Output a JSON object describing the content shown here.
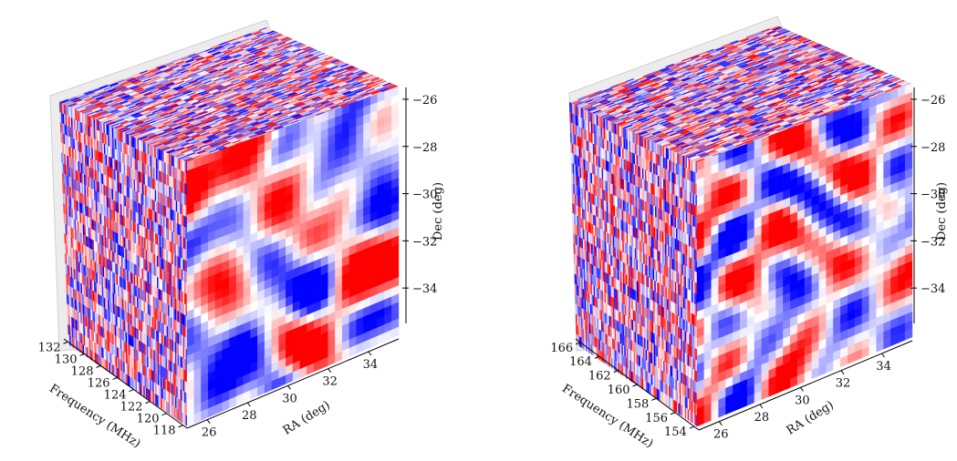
{
  "chart_data": [
    {
      "type": "heatmap",
      "title": "",
      "xlabel": "RA (deg)",
      "ylabel": "Frequency (MHz)",
      "zlabel": "Dec (deg)",
      "ra_ticks": [
        "26",
        "28",
        "30",
        "32",
        "34"
      ],
      "freq_ticks": [
        "118",
        "120",
        "122",
        "124",
        "126",
        "128",
        "130",
        "132"
      ],
      "dec_ticks": [
        "−26",
        "−28",
        "−30",
        "−32",
        "−34"
      ],
      "ra_range": [
        25,
        35.5
      ],
      "dec_range": [
        -35.5,
        -25.5
      ],
      "freq_range": [
        117.5,
        132.5
      ],
      "colormap": {
        "negative": "#0000ff",
        "zero": "#ffffff",
        "positive": "#ff0000"
      }
    },
    {
      "type": "heatmap",
      "title": "",
      "xlabel": "RA (deg)",
      "ylabel": "Frequency (MHz)",
      "zlabel": "Dec (deg)",
      "ra_ticks": [
        "26",
        "28",
        "30",
        "32",
        "34"
      ],
      "freq_ticks": [
        "154",
        "156",
        "158",
        "160",
        "162",
        "164",
        "166"
      ],
      "dec_ticks": [
        "−26",
        "−28",
        "−30",
        "−32",
        "−34"
      ],
      "ra_range": [
        25,
        35.5
      ],
      "dec_range": [
        -35.5,
        -25.5
      ],
      "freq_range": [
        153.5,
        166.5
      ],
      "colormap": {
        "negative": "#0000ff",
        "zero": "#ffffff",
        "positive": "#ff0000"
      }
    }
  ]
}
